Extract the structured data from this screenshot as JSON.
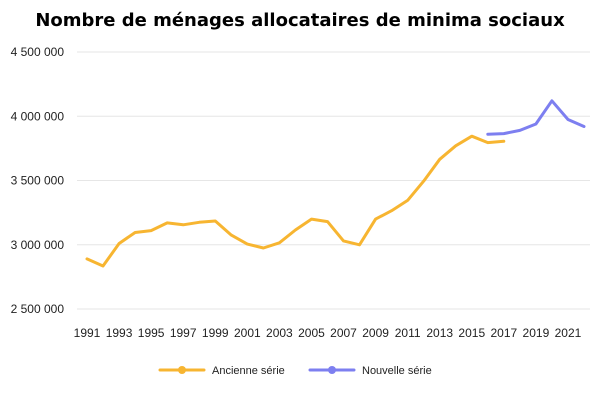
{
  "chart_data": {
    "type": "line",
    "title": "Nombre de ménages allocataires de minima sociaux",
    "xlabel": "",
    "ylabel": "",
    "ylim": [
      2500000,
      4500000
    ],
    "yticks": [
      {
        "value": 2500000,
        "label": "2 500 000"
      },
      {
        "value": 3000000,
        "label": "3 000 000"
      },
      {
        "value": 3500000,
        "label": "3 500 000"
      },
      {
        "value": 4000000,
        "label": "4 000 000"
      },
      {
        "value": 4500000,
        "label": "4 500 000"
      }
    ],
    "xlim": [
      1991,
      2022
    ],
    "xticks": [
      "1991",
      "1993",
      "1995",
      "1997",
      "1999",
      "2001",
      "2003",
      "2005",
      "2007",
      "2009",
      "2011",
      "2013",
      "2015",
      "2017",
      "2019",
      "2021"
    ],
    "grid": "horizontal",
    "legend_position": "bottom",
    "series": [
      {
        "name": "Ancienne série",
        "color": "#f7b531",
        "x": [
          1991,
          1992,
          1993,
          1994,
          1995,
          1996,
          1997,
          1998,
          1999,
          2000,
          2001,
          2002,
          2003,
          2004,
          2005,
          2006,
          2007,
          2008,
          2009,
          2010,
          2011,
          2012,
          2013,
          2014,
          2015,
          2016,
          2017
        ],
        "values": [
          2890000,
          2835000,
          3010000,
          3095000,
          3110000,
          3170000,
          3155000,
          3175000,
          3185000,
          3075000,
          3005000,
          2975000,
          3015000,
          3115000,
          3200000,
          3180000,
          3030000,
          3000000,
          3200000,
          3265000,
          3345000,
          3495000,
          3665000,
          3770000,
          3845000,
          3795000,
          3805000
        ]
      },
      {
        "name": "Nouvelle série",
        "color": "#7d7ff0",
        "x": [
          2016,
          2017,
          2018,
          2019,
          2020,
          2021,
          2022
        ],
        "values": [
          3860000,
          3865000,
          3890000,
          3940000,
          4120000,
          3975000,
          3920000
        ]
      }
    ]
  }
}
